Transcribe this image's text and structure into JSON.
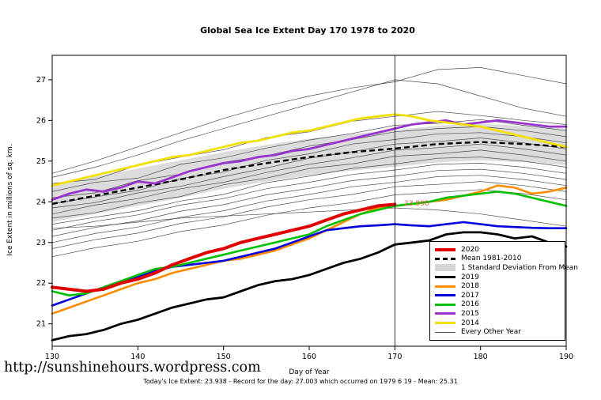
{
  "page": {
    "url_text": "http://sunshinehours.wordpress.com",
    "footer_note": "Today's Ice Extent: 23.938  -  Record for the day: 27.003 which occurred on 1979 6 19  -  Mean: 25.31"
  },
  "chart_data": {
    "type": "line",
    "title": "Global Sea Ice Extent Day 170 1978 to 2020",
    "xlabel": "Day of Year",
    "ylabel": "Ice Extent in millions of sq. km.",
    "xlim": [
      130,
      190
    ],
    "ylim": [
      20.45,
      27.6
    ],
    "x_ticks": [
      130,
      140,
      150,
      160,
      170,
      180,
      190
    ],
    "y_ticks": [
      21,
      22,
      23,
      24,
      25,
      26,
      27
    ],
    "grid": false,
    "vline_x": 170,
    "annotation": {
      "text": "23.938",
      "x": 170.8,
      "y": 23.938,
      "color": "#e0613a"
    },
    "band": {
      "label": "1 Standard Deviation From Mean",
      "color": "#d6d6d6",
      "x": [
        130,
        135,
        140,
        145,
        150,
        155,
        160,
        165,
        170,
        175,
        180,
        185,
        190
      ],
      "upper": [
        24.42,
        24.62,
        24.82,
        25.02,
        25.22,
        25.4,
        25.55,
        25.67,
        25.76,
        25.87,
        25.92,
        25.87,
        25.8
      ],
      "lower": [
        23.5,
        23.7,
        23.9,
        24.1,
        24.32,
        24.5,
        24.65,
        24.77,
        24.86,
        24.97,
        25.02,
        24.97,
        24.9
      ]
    },
    "mean": {
      "label": "Mean 1981-2010",
      "color": "#000000",
      "dash": true,
      "width": 2.4,
      "x": [
        130,
        135,
        140,
        145,
        150,
        155,
        160,
        165,
        170,
        175,
        180,
        185,
        190
      ],
      "values": [
        23.95,
        24.15,
        24.35,
        24.55,
        24.78,
        24.95,
        25.1,
        25.22,
        25.31,
        25.42,
        25.47,
        25.42,
        25.35
      ]
    },
    "series": [
      {
        "name": "2019",
        "color": "#000000",
        "width": 2.8,
        "x": [
          130,
          132,
          134,
          136,
          138,
          140,
          142,
          144,
          146,
          148,
          150,
          152,
          154,
          156,
          158,
          160,
          162,
          164,
          166,
          168,
          170,
          172,
          174,
          176,
          178,
          180,
          182,
          184,
          186,
          188,
          190
        ],
        "values": [
          20.6,
          20.7,
          20.75,
          20.85,
          21.0,
          21.1,
          21.25,
          21.4,
          21.5,
          21.6,
          21.65,
          21.8,
          21.95,
          22.05,
          22.1,
          22.2,
          22.35,
          22.5,
          22.6,
          22.75,
          22.95,
          23.0,
          23.05,
          23.2,
          23.25,
          23.25,
          23.2,
          23.1,
          23.15,
          23.0,
          22.9
        ]
      },
      {
        "name": "2018",
        "color": "#ff8c00",
        "width": 2.6,
        "x": [
          130,
          132,
          134,
          136,
          138,
          140,
          142,
          144,
          146,
          148,
          150,
          152,
          154,
          156,
          158,
          160,
          162,
          164,
          166,
          168,
          170,
          172,
          174,
          176,
          178,
          180,
          182,
          184,
          186,
          188,
          190
        ],
        "values": [
          21.25,
          21.4,
          21.55,
          21.7,
          21.85,
          22.0,
          22.1,
          22.25,
          22.35,
          22.45,
          22.55,
          22.6,
          22.7,
          22.8,
          22.95,
          23.1,
          23.3,
          23.5,
          23.7,
          23.85,
          23.9,
          23.95,
          24.0,
          24.05,
          24.15,
          24.25,
          24.4,
          24.35,
          24.2,
          24.25,
          24.35
        ]
      },
      {
        "name": "2017",
        "color": "#0000dd",
        "width": 2.6,
        "x": [
          130,
          132,
          134,
          136,
          138,
          140,
          142,
          144,
          146,
          148,
          150,
          152,
          154,
          156,
          158,
          160,
          162,
          164,
          166,
          168,
          170,
          172,
          174,
          176,
          178,
          180,
          182,
          184,
          186,
          188,
          190
        ],
        "values": [
          21.45,
          21.6,
          21.75,
          21.9,
          22.05,
          22.15,
          22.3,
          22.4,
          22.45,
          22.5,
          22.55,
          22.65,
          22.75,
          22.85,
          23.0,
          23.15,
          23.3,
          23.35,
          23.4,
          23.42,
          23.45,
          23.42,
          23.4,
          23.45,
          23.5,
          23.45,
          23.4,
          23.38,
          23.36,
          23.35,
          23.35
        ]
      },
      {
        "name": "2016",
        "color": "#00c000",
        "width": 2.6,
        "x": [
          130,
          132,
          134,
          136,
          138,
          140,
          142,
          144,
          146,
          148,
          150,
          152,
          154,
          156,
          158,
          160,
          162,
          164,
          166,
          168,
          170,
          172,
          174,
          176,
          178,
          180,
          182,
          184,
          186,
          188,
          190
        ],
        "values": [
          21.8,
          21.7,
          21.75,
          21.9,
          22.05,
          22.2,
          22.35,
          22.4,
          22.5,
          22.6,
          22.7,
          22.8,
          22.9,
          23.0,
          23.1,
          23.2,
          23.4,
          23.55,
          23.7,
          23.8,
          23.9,
          23.95,
          24.0,
          24.1,
          24.15,
          24.2,
          24.25,
          24.2,
          24.1,
          24.0,
          23.9
        ]
      },
      {
        "name": "2015",
        "color": "#9a32cd",
        "width": 2.8,
        "x": [
          130,
          132,
          134,
          136,
          138,
          140,
          142,
          144,
          146,
          148,
          150,
          152,
          154,
          156,
          158,
          160,
          162,
          164,
          166,
          168,
          170,
          172,
          174,
          176,
          178,
          180,
          182,
          184,
          186,
          188,
          190
        ],
        "values": [
          24.05,
          24.2,
          24.3,
          24.25,
          24.35,
          24.5,
          24.45,
          24.6,
          24.75,
          24.85,
          24.95,
          25.0,
          25.1,
          25.15,
          25.25,
          25.3,
          25.4,
          25.5,
          25.6,
          25.7,
          25.8,
          25.9,
          25.95,
          26.0,
          25.9,
          25.95,
          26.0,
          25.95,
          25.9,
          25.85,
          25.85
        ]
      },
      {
        "name": "2014",
        "color": "#f2e100",
        "width": 2.8,
        "x": [
          130,
          132,
          134,
          136,
          138,
          140,
          142,
          144,
          146,
          148,
          150,
          152,
          154,
          156,
          158,
          160,
          162,
          164,
          166,
          168,
          170,
          172,
          174,
          176,
          178,
          180,
          182,
          184,
          186,
          188,
          190
        ],
        "values": [
          24.4,
          24.5,
          24.6,
          24.7,
          24.8,
          24.9,
          25.0,
          25.1,
          25.15,
          25.25,
          25.35,
          25.45,
          25.5,
          25.6,
          25.7,
          25.75,
          25.85,
          25.95,
          26.05,
          26.1,
          26.15,
          26.1,
          26.0,
          25.95,
          25.9,
          25.85,
          25.75,
          25.65,
          25.55,
          25.45,
          25.35
        ]
      },
      {
        "name": "2020",
        "color": "#e10000",
        "width": 4,
        "x": [
          130,
          132,
          134,
          136,
          138,
          140,
          142,
          144,
          146,
          148,
          150,
          152,
          154,
          156,
          158,
          160,
          162,
          164,
          166,
          168,
          170
        ],
        "values": [
          21.9,
          21.85,
          21.8,
          21.85,
          22.0,
          22.1,
          22.25,
          22.45,
          22.6,
          22.75,
          22.85,
          23.0,
          23.1,
          23.2,
          23.3,
          23.4,
          23.55,
          23.7,
          23.8,
          23.9,
          23.938
        ]
      }
    ],
    "other_years": {
      "label": "Every Other Year",
      "color": "#3a3a3a",
      "width": 0.7,
      "x": [
        130,
        135,
        140,
        145,
        150,
        155,
        160,
        165,
        170,
        175,
        180,
        185,
        190
      ],
      "lines": [
        [
          24.7,
          25.0,
          25.35,
          25.7,
          26.05,
          26.35,
          26.6,
          26.8,
          26.95,
          27.25,
          27.3,
          27.1,
          26.9
        ],
        [
          24.6,
          24.85,
          25.15,
          25.5,
          25.8,
          26.1,
          26.4,
          26.7,
          27.0,
          26.9,
          26.6,
          26.3,
          26.1
        ],
        [
          24.45,
          24.55,
          24.9,
          25.1,
          25.28,
          25.58,
          25.72,
          25.98,
          26.1,
          26.22,
          26.12,
          26.0,
          25.9
        ],
        [
          24.25,
          24.48,
          24.58,
          24.92,
          25.08,
          25.32,
          25.52,
          25.68,
          25.88,
          25.93,
          26.02,
          25.88,
          25.75
        ],
        [
          24.1,
          24.22,
          24.52,
          24.68,
          24.97,
          25.13,
          25.37,
          25.53,
          25.72,
          25.8,
          25.85,
          25.75,
          25.6
        ],
        [
          23.95,
          24.12,
          24.28,
          24.57,
          24.73,
          25.02,
          25.18,
          25.42,
          25.53,
          25.67,
          25.7,
          25.6,
          25.45
        ],
        [
          23.85,
          23.98,
          24.22,
          24.38,
          24.62,
          24.83,
          25.07,
          25.23,
          25.42,
          25.48,
          25.57,
          25.45,
          25.3
        ],
        [
          23.7,
          23.92,
          24.08,
          24.32,
          24.48,
          24.72,
          24.92,
          25.08,
          25.27,
          25.33,
          25.42,
          25.3,
          25.15
        ],
        [
          23.6,
          23.73,
          23.97,
          24.13,
          24.42,
          24.58,
          24.82,
          24.93,
          25.12,
          25.18,
          25.27,
          25.15,
          25.0
        ],
        [
          23.45,
          23.62,
          23.78,
          24.02,
          24.18,
          24.47,
          24.63,
          24.82,
          24.93,
          25.07,
          25.1,
          25.0,
          24.85
        ],
        [
          23.3,
          23.52,
          23.68,
          23.92,
          24.08,
          24.32,
          24.48,
          24.67,
          24.78,
          24.92,
          24.95,
          24.85,
          24.7
        ],
        [
          23.15,
          23.37,
          23.53,
          23.77,
          23.93,
          24.17,
          24.33,
          24.52,
          24.63,
          24.77,
          24.8,
          24.7,
          24.55
        ],
        [
          23.0,
          23.22,
          23.38,
          23.62,
          23.78,
          24.02,
          24.18,
          24.37,
          24.48,
          24.62,
          24.65,
          24.55,
          24.4
        ],
        [
          22.85,
          23.07,
          23.23,
          23.47,
          23.63,
          23.87,
          24.05,
          24.18,
          24.37,
          24.43,
          24.5,
          24.4,
          24.25
        ],
        [
          22.65,
          22.87,
          23.03,
          23.27,
          23.43,
          23.67,
          23.85,
          23.98,
          24.17,
          24.23,
          24.3,
          24.2,
          24.05
        ],
        [
          23.35,
          23.4,
          23.5,
          23.6,
          23.65,
          23.7,
          23.75,
          23.8,
          23.85,
          23.8,
          23.7,
          23.55,
          23.4
        ]
      ]
    }
  },
  "legend": {
    "items": [
      {
        "label": "2020",
        "swatch": "line",
        "color": "#e10000",
        "weight": 4
      },
      {
        "label": "Mean 1981-2010",
        "swatch": "dash",
        "color": "#000000",
        "weight": 3
      },
      {
        "label": "1 Standard Deviation From Mean",
        "swatch": "box",
        "color": "#d6d6d6",
        "weight": 9
      },
      {
        "label": "2019",
        "swatch": "line",
        "color": "#000000",
        "weight": 3
      },
      {
        "label": "2018",
        "swatch": "line",
        "color": "#ff8c00",
        "weight": 3
      },
      {
        "label": "2017",
        "swatch": "line",
        "color": "#0000dd",
        "weight": 3
      },
      {
        "label": "2016",
        "swatch": "line",
        "color": "#00c000",
        "weight": 3
      },
      {
        "label": "2015",
        "swatch": "line",
        "color": "#9a32cd",
        "weight": 3
      },
      {
        "label": "2014",
        "swatch": "line",
        "color": "#f2e100",
        "weight": 3
      },
      {
        "label": "Every Other Year",
        "swatch": "line",
        "color": "#555555",
        "weight": 1
      }
    ]
  }
}
